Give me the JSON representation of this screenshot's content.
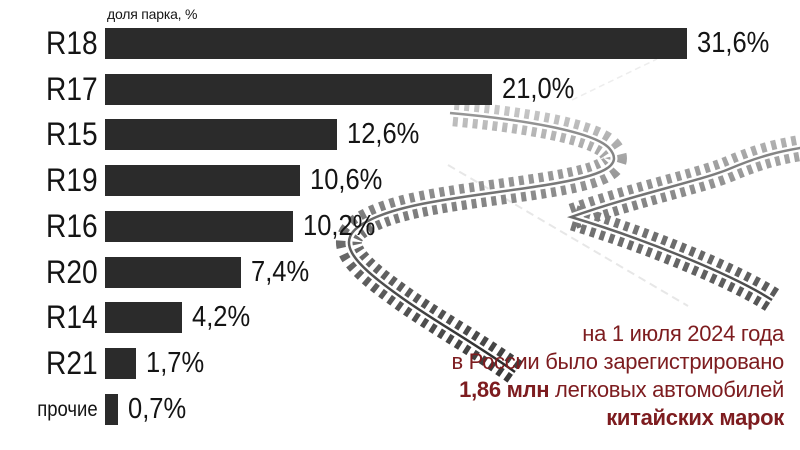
{
  "chart_data": {
    "type": "bar",
    "orientation": "horizontal",
    "title": "",
    "xlabel": "доля парка, %",
    "ylabel": "",
    "categories": [
      "R18",
      "R17",
      "R15",
      "R19",
      "R16",
      "R20",
      "R14",
      "R21",
      "прочие"
    ],
    "values": [
      31.6,
      21.0,
      12.6,
      10.6,
      10.2,
      7.4,
      4.2,
      1.7,
      0.7
    ],
    "value_labels": [
      "31,6%",
      "21,0%",
      "12,6%",
      "10,6%",
      "10,2%",
      "7,4%",
      "4,2%",
      "1,7%",
      "0,7%"
    ],
    "xlim": [
      0,
      31.6
    ],
    "grid": false,
    "legend": "none",
    "bar_color": "#2b2b2b"
  },
  "annotation": {
    "color": "#7d1c1f",
    "lines": [
      {
        "parts": [
          {
            "text": "на 1 июля 2024 года",
            "bold": false
          }
        ]
      },
      {
        "parts": [
          {
            "text": "в России было зарегистрировано",
            "bold": false
          }
        ]
      },
      {
        "parts": [
          {
            "text": "1,86 млн",
            "bold": true
          },
          {
            "text": " легковых автомобилей",
            "bold": false
          }
        ]
      },
      {
        "parts": [
          {
            "text": "китайских марок",
            "bold": true
          }
        ]
      }
    ]
  },
  "colors": {
    "bar": "#2b2b2b",
    "text": "#141414",
    "annotation": "#7d1c1f",
    "background": "#ffffff"
  }
}
